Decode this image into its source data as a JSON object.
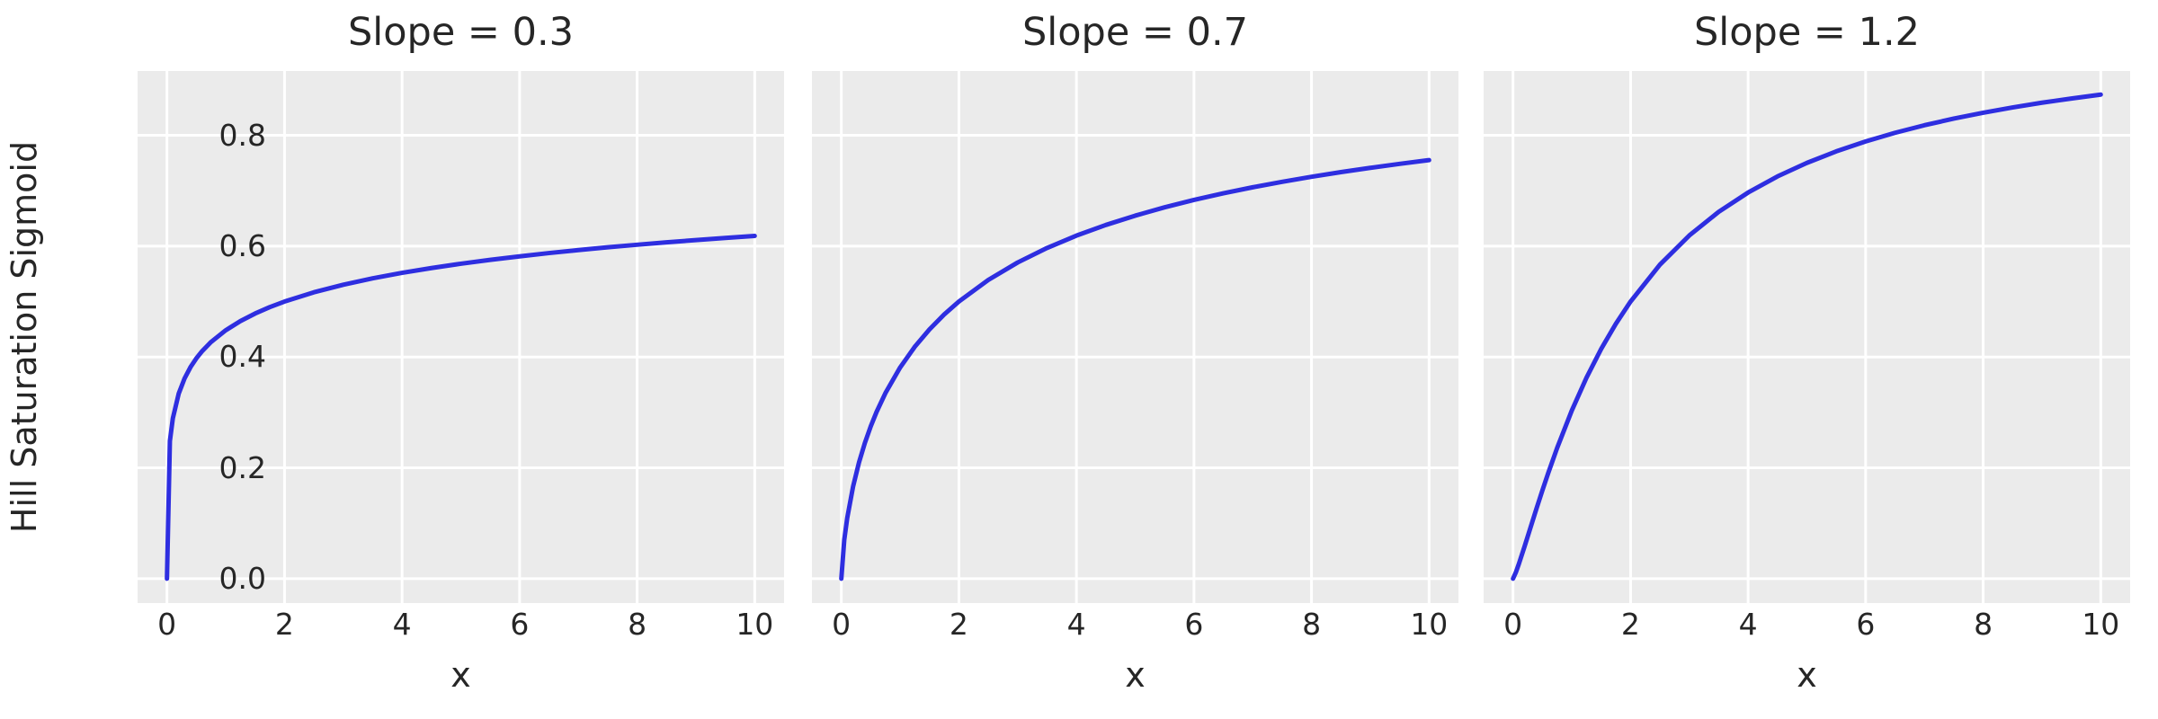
{
  "figure": {
    "ylabel": "Hill Saturation Sigmoid",
    "background_color": "#ffffff",
    "panel_color": "#ebebeb",
    "grid_color": "#ffffff",
    "line_color": "#2e2ee0",
    "text_color": "#262626"
  },
  "chart_data": [
    {
      "type": "line",
      "title": "Slope = 0.3",
      "xlabel": "x",
      "ylabel": "Hill Saturation Sigmoid",
      "slope": 0.3,
      "xlim": [
        -0.5,
        10.5
      ],
      "ylim": [
        -0.044,
        0.916
      ],
      "xticks": [
        0,
        2,
        4,
        6,
        8,
        10
      ],
      "xtick_labels": [
        "0",
        "2",
        "4",
        "6",
        "8",
        "10"
      ],
      "yticks": [
        0.0,
        0.2,
        0.4,
        0.6,
        0.8
      ],
      "ytick_labels": [
        "0.0",
        "0.2",
        "0.4",
        "0.6",
        "0.8"
      ],
      "grid": true,
      "legend": "none",
      "x": [
        0,
        0.05,
        0.1,
        0.2,
        0.3,
        0.4,
        0.5,
        0.6,
        0.75,
        1,
        1.25,
        1.5,
        1.75,
        2,
        2.5,
        3,
        3.5,
        4,
        4.5,
        5,
        5.5,
        6,
        6.5,
        7,
        7.5,
        8,
        8.5,
        9,
        9.5,
        10
      ],
      "y": [
        0,
        0.2485,
        0.2893,
        0.3339,
        0.3614,
        0.3816,
        0.3975,
        0.4107,
        0.427,
        0.4482,
        0.4648,
        0.4784,
        0.49,
        0.5,
        0.5167,
        0.5304,
        0.5419,
        0.5518,
        0.5605,
        0.5683,
        0.5753,
        0.5816,
        0.5875,
        0.5929,
        0.5979,
        0.6025,
        0.6068,
        0.611,
        0.6148,
        0.6184
      ]
    },
    {
      "type": "line",
      "title": "Slope = 0.7",
      "xlabel": "x",
      "ylabel": "Hill Saturation Sigmoid",
      "slope": 0.7,
      "xlim": [
        -0.5,
        10.5
      ],
      "ylim": [
        -0.044,
        0.916
      ],
      "xticks": [
        0,
        2,
        4,
        6,
        8,
        10
      ],
      "xtick_labels": [
        "0",
        "2",
        "4",
        "6",
        "8",
        "10"
      ],
      "yticks": [
        0.0,
        0.2,
        0.4,
        0.6,
        0.8
      ],
      "ytick_labels": [
        "0.0",
        "0.2",
        "0.4",
        "0.6",
        "0.8"
      ],
      "grid": true,
      "legend": "none",
      "x": [
        0,
        0.05,
        0.1,
        0.2,
        0.3,
        0.4,
        0.5,
        0.6,
        0.75,
        1,
        1.25,
        1.5,
        1.75,
        2,
        2.5,
        3,
        3.5,
        4,
        4.5,
        5,
        5.5,
        6,
        6.5,
        7,
        7.5,
        8,
        8.5,
        9,
        9.5,
        10
      ],
      "y": [
        0,
        0.0703,
        0.1094,
        0.1663,
        0.2095,
        0.2448,
        0.2748,
        0.301,
        0.3348,
        0.381,
        0.4185,
        0.4498,
        0.4767,
        0.5,
        0.539,
        0.5705,
        0.5967,
        0.619,
        0.6382,
        0.655,
        0.67,
        0.6834,
        0.6953,
        0.7062,
        0.7161,
        0.7251,
        0.7336,
        0.7413,
        0.7485,
        0.7552
      ]
    },
    {
      "type": "line",
      "title": "Slope = 1.2",
      "xlabel": "x",
      "ylabel": "Hill Saturation Sigmoid",
      "slope": 1.2,
      "xlim": [
        -0.5,
        10.5
      ],
      "ylim": [
        -0.044,
        0.916
      ],
      "xticks": [
        0,
        2,
        4,
        6,
        8,
        10
      ],
      "xtick_labels": [
        "0",
        "2",
        "4",
        "6",
        "8",
        "10"
      ],
      "yticks": [
        0.0,
        0.2,
        0.4,
        0.6,
        0.8
      ],
      "ytick_labels": [
        "0.0",
        "0.2",
        "0.4",
        "0.6",
        "0.8"
      ],
      "grid": true,
      "legend": "none",
      "x": [
        0,
        0.05,
        0.1,
        0.2,
        0.3,
        0.4,
        0.5,
        0.6,
        0.75,
        1,
        1.25,
        1.5,
        1.75,
        2,
        2.5,
        3,
        3.5,
        4,
        4.5,
        5,
        5.5,
        6,
        6.5,
        7,
        7.5,
        8,
        8.5,
        9,
        9.5,
        10
      ],
      "y": [
        0,
        0.0118,
        0.0267,
        0.0593,
        0.0931,
        0.1266,
        0.1593,
        0.1908,
        0.2356,
        0.3033,
        0.3626,
        0.4146,
        0.46,
        0.5,
        0.5666,
        0.6193,
        0.6619,
        0.6967,
        0.7258,
        0.7502,
        0.771,
        0.7889,
        0.8045,
        0.8181,
        0.8301,
        0.8407,
        0.8502,
        0.8588,
        0.8664,
        0.8734
      ]
    }
  ]
}
